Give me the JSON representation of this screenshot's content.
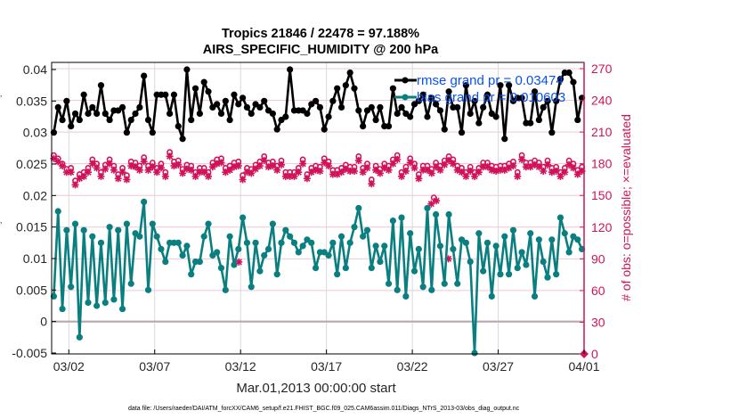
{
  "chart_data": {
    "type": "line",
    "title": "Tropics 21846 / 22478 = 97.188%",
    "subtitle": "AIRS_SPECIFIC_HUMIDITY @ 200 hPa",
    "xlabel": "Mar.01,2013 00:00:00 start",
    "ylabel_right": "# of obs: o=possible; ×=evaluated",
    "footer": "data file: /Users/raeder/DAI/ATM_forcXX/CAM6_setup/f.e21.FHIST_BGC.f09_025.CAM6assim.011/Diags_NTrS_2013-03/obs_diag_output.nc",
    "x_range_days": [
      0,
      31
    ],
    "x_ticks": [
      {
        "day": 1,
        "label": "03/02"
      },
      {
        "day": 6,
        "label": "03/07"
      },
      {
        "day": 11,
        "label": "03/12"
      },
      {
        "day": 16,
        "label": "03/17"
      },
      {
        "day": 21,
        "label": "03/22"
      },
      {
        "day": 26,
        "label": "03/27"
      },
      {
        "day": 31,
        "label": "04/01"
      }
    ],
    "ylim_left": [
      -0.005,
      0.041
    ],
    "y_ticks_left": [
      "0.04",
      "0.035",
      "0.03",
      "0.025",
      "0.02",
      "0.015",
      "0.01",
      "0.005",
      "0",
      "-0.005"
    ],
    "y_tick_values_left": [
      0.04,
      0.035,
      0.03,
      0.025,
      0.02,
      0.015,
      0.01,
      0.005,
      0,
      -0.005
    ],
    "ylim_right": [
      0,
      276
    ],
    "y_ticks_right": [
      "270",
      "240",
      "210",
      "180",
      "150",
      "120",
      "90",
      "60",
      "30",
      "0"
    ],
    "y_tick_values_right": [
      270,
      240,
      210,
      180,
      150,
      120,
      90,
      60,
      30,
      0
    ],
    "legend": [
      {
        "label": "rmse grand pr = 0.03474",
        "color": "#000000"
      },
      {
        "label": "bias grand pr = 0.010603",
        "color": "#0a7f80"
      }
    ],
    "legend_placement": "top-right",
    "colors": {
      "rmse": "#000000",
      "bias": "#0a7f80",
      "obs_count": "#d1125a",
      "zero_line": "#b8aab0",
      "grid": "#f0c8d8",
      "vgrid": "#d9d9d9",
      "legend_text": "#0a52f0"
    },
    "x_step_days": 0.25,
    "x_start_day": 0.125,
    "series": [
      {
        "name": "rmse",
        "values": [
          0.03,
          0.034,
          0.032,
          0.035,
          0.031,
          0.033,
          0.032,
          0.036,
          0.033,
          0.034,
          0.033,
          0.0375,
          0.033,
          0.032,
          0.0335,
          0.0335,
          0.034,
          0.03,
          0.032,
          0.033,
          0.034,
          0.039,
          0.032,
          0.03,
          0.036,
          0.036,
          0.036,
          0.033,
          0.036,
          0.031,
          0.029,
          0.04,
          0.032,
          0.037,
          0.033,
          0.038,
          0.0365,
          0.034,
          0.0345,
          0.033,
          0.035,
          0.032,
          0.036,
          0.0345,
          0.0355,
          0.034,
          0.033,
          0.0345,
          0.034,
          0.035,
          0.0335,
          0.033,
          0.0305,
          0.032,
          0.0325,
          0.04,
          0.0335,
          0.0335,
          0.0335,
          0.033,
          0.0345,
          0.035,
          0.034,
          0.0305,
          0.0325,
          0.035,
          0.037,
          0.034,
          0.0375,
          0.0395,
          0.037,
          0.0335,
          0.031,
          0.0335,
          0.034,
          0.032,
          0.034,
          0.031,
          0.031,
          0.037,
          0.033,
          0.034,
          0.033,
          0.0325,
          0.0345,
          0.035,
          0.036,
          0.0325,
          0.0355,
          0.0345,
          0.0335,
          0.0305,
          0.0365,
          0.034,
          0.034,
          0.03,
          0.0375,
          0.033,
          0.035,
          0.0315,
          0.034,
          0.036,
          0.033,
          0.0325,
          0.0375,
          0.029,
          0.0375,
          0.035,
          0.0355,
          0.0355,
          0.0315,
          0.0315,
          0.0365,
          0.032,
          0.034,
          0.035,
          0.03,
          0.035,
          0.0385,
          0.0395,
          0.0395,
          0.038,
          0.032,
          0.0355
        ],
        "marker": "circle"
      },
      {
        "name": "bias",
        "values": [
          0.004,
          0.0175,
          0.002,
          0.0145,
          0.0055,
          0.0155,
          -0.0025,
          0.0145,
          0.003,
          0.0135,
          0.0025,
          0.0125,
          0.003,
          0.015,
          0.0035,
          0.0145,
          0.002,
          0.0155,
          0.006,
          0.014,
          0.0135,
          0.019,
          0.005,
          0.0155,
          0.0135,
          0.0115,
          0.0095,
          0.0125,
          0.0125,
          0.0125,
          0.0105,
          0.012,
          0.0075,
          0.0095,
          0.0095,
          0.0135,
          0.0155,
          0.0105,
          0.011,
          0.0085,
          0.005,
          0.0135,
          0.009,
          0.0115,
          0.0165,
          0.0125,
          0.0055,
          0.0125,
          0.008,
          0.0105,
          0.0115,
          0.0155,
          0.0075,
          0.0125,
          0.0145,
          0.0135,
          0.0125,
          0.011,
          0.012,
          0.013,
          0.0125,
          0.0085,
          0.011,
          0.011,
          0.0105,
          0.0125,
          0.0075,
          0.0135,
          0.0085,
          0.0125,
          0.015,
          0.018,
          0.0135,
          0.0145,
          0.0085,
          0.012,
          0.0095,
          0.012,
          0.006,
          0.016,
          0.005,
          0.0165,
          0.004,
          0.014,
          0.008,
          0.0115,
          0.0055,
          0.018,
          0.005,
          0.017,
          0.012,
          0.006,
          0.017,
          0.0115,
          0.006,
          0.013,
          0.0125,
          0.0095,
          -0.005,
          0.014,
          0.008,
          0.0125,
          0.004,
          0.012,
          0.0075,
          0.0135,
          0.0075,
          0.0145,
          0.0085,
          0.011,
          0.009,
          0.014,
          0.004,
          0.013,
          0.0095,
          0.007,
          0.013,
          0.0075,
          0.0165,
          0.014,
          0.011,
          0.0135,
          0.013,
          0.0115
        ],
        "marker": "circle"
      },
      {
        "name": "obs_possible",
        "values": [
          188,
          185,
          180,
          175,
          176,
          164,
          170,
          172,
          176,
          184,
          180,
          172,
          179,
          184,
          178,
          170,
          176,
          169,
          182,
          181,
          178,
          186,
          178,
          181,
          176,
          180,
          172,
          191,
          182,
          183,
          175,
          179,
          178,
          172,
          176,
          176,
          172,
          181,
          184,
          185,
          176,
          178,
          181,
          182,
          169,
          176,
          175,
          179,
          182,
          187,
          181,
          182,
          178,
          183,
          172,
          172,
          172,
          176,
          184,
          170,
          176,
          178,
          177,
          185,
          182,
          174,
          174,
          176,
          179,
          177,
          177,
          187,
          176,
          180,
          165,
          178,
          175,
          180,
          178,
          184,
          188,
          172,
          177,
          185,
          180,
          170,
          178,
          178,
          175,
          181,
          178,
          183,
          187,
          184,
          178,
          176,
          172,
          177,
          172,
          176,
          181,
          181,
          178,
          177,
          178,
          178,
          180,
          182,
          172,
          188,
          181,
          181,
          183,
          181,
          177,
          183,
          176,
          177,
          172,
          176,
          183,
          180,
          174,
          177
        ],
        "marker": "o"
      },
      {
        "name": "obs_evaluated",
        "values": [
          185,
          182,
          178,
          172,
          172,
          160,
          166,
          168,
          172,
          180,
          176,
          168,
          175,
          180,
          174,
          166,
          172,
          165,
          178,
          177,
          174,
          182,
          174,
          177,
          172,
          176,
          168,
          187,
          178,
          179,
          171,
          175,
          174,
          168,
          172,
          172,
          168,
          177,
          180,
          181,
          172,
          174,
          177,
          178,
          165,
          172,
          171,
          175,
          178,
          183,
          177,
          178,
          174,
          179,
          168,
          168,
          168,
          172,
          180,
          166,
          172,
          174,
          173,
          181,
          178,
          170,
          170,
          172,
          175,
          173,
          173,
          183,
          172,
          176,
          161,
          174,
          171,
          176,
          174,
          180,
          184,
          168,
          173,
          181,
          176,
          166,
          174,
          174,
          171,
          177,
          174,
          179,
          183,
          180,
          174,
          172,
          168,
          173,
          168,
          172,
          177,
          177,
          174,
          173,
          174,
          174,
          176,
          178,
          168,
          184,
          177,
          177,
          179,
          177,
          173,
          179,
          172,
          173,
          168,
          172,
          179,
          176,
          170,
          173
        ],
        "marker": "asterisk"
      }
    ],
    "outlier_markers": [
      {
        "day": 10.9,
        "value_right": 87,
        "marker": "asterisk"
      },
      {
        "day": 22.1,
        "value_right": 142,
        "marker": "asterisk"
      },
      {
        "day": 22.25,
        "value_right": 148,
        "marker": "o"
      },
      {
        "day": 22.4,
        "value_right": 145,
        "marker": "asterisk"
      },
      {
        "day": 23.1,
        "value_right": 90,
        "marker": "asterisk"
      },
      {
        "day": 31,
        "value_right": 0,
        "marker": "diamond"
      }
    ],
    "grid": true
  }
}
